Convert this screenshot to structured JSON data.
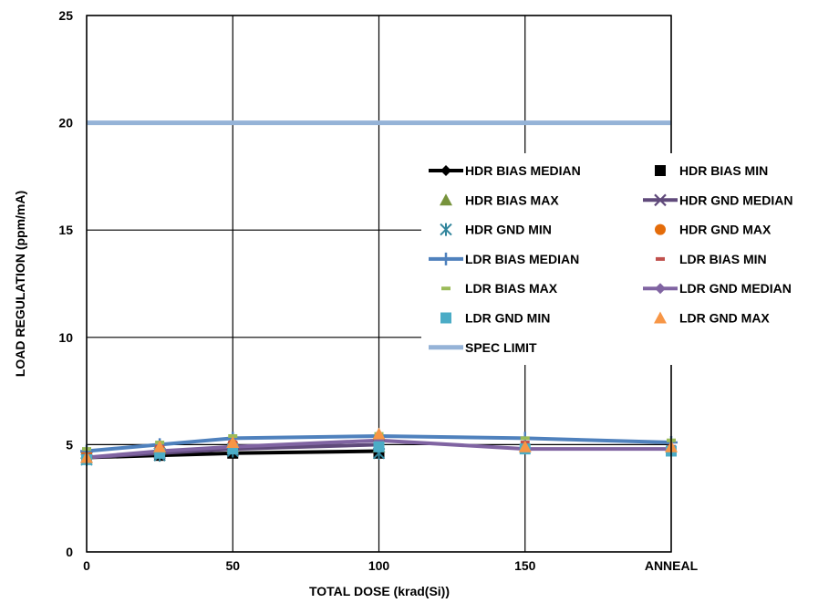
{
  "chart_data": {
    "type": "line",
    "title": "",
    "xlabel": "TOTAL DOSE (krad(Si))",
    "ylabel": "LOAD REGULATION (ppm/mA)",
    "x_ticks": [
      "0",
      "50",
      "100",
      "150",
      "ANNEAL"
    ],
    "x_values": [
      0,
      25,
      50,
      100,
      150,
      200
    ],
    "xlim": [
      0,
      200
    ],
    "ylim": [
      0,
      25
    ],
    "y_ticks": [
      0,
      5,
      10,
      15,
      20,
      25
    ],
    "grid": true,
    "legend_position": "right-center",
    "series": [
      {
        "name": "HDR BIAS MEDIAN",
        "color": "#000000",
        "marker": "diamond",
        "line": true,
        "values": [
          4.4,
          4.5,
          4.6,
          4.7,
          null,
          null
        ]
      },
      {
        "name": "HDR BIAS MIN",
        "color": "#000000",
        "marker": "square",
        "line": false,
        "values": [
          4.4,
          4.5,
          4.6,
          4.6,
          null,
          null
        ]
      },
      {
        "name": "HDR BIAS MAX",
        "color": "#77933C",
        "marker": "triangle",
        "line": false,
        "values": [
          4.6,
          4.8,
          4.9,
          4.9,
          null,
          null
        ]
      },
      {
        "name": "HDR GND MEDIAN",
        "color": "#604A7B",
        "marker": "x",
        "line": true,
        "values": [
          4.4,
          4.6,
          4.8,
          5.0,
          null,
          null
        ]
      },
      {
        "name": "HDR GND MIN",
        "color": "#31859C",
        "marker": "asterisk",
        "line": false,
        "values": [
          4.3,
          4.5,
          4.7,
          4.6,
          null,
          null
        ]
      },
      {
        "name": "HDR GND MAX",
        "color": "#E46C0A",
        "marker": "circle",
        "line": false,
        "values": [
          4.6,
          4.8,
          5.0,
          5.1,
          null,
          null
        ]
      },
      {
        "name": "LDR BIAS MEDIAN",
        "color": "#4F81BD",
        "marker": "plus",
        "line": true,
        "values": [
          4.7,
          5.0,
          5.3,
          5.4,
          5.3,
          5.1
        ]
      },
      {
        "name": "LDR BIAS MIN",
        "color": "#C0504D",
        "marker": "dash",
        "line": false,
        "values": [
          4.5,
          4.9,
          5.1,
          5.2,
          5.1,
          4.9
        ]
      },
      {
        "name": "LDR BIAS MAX",
        "color": "#9BBB59",
        "marker": "dash",
        "line": false,
        "values": [
          4.8,
          5.1,
          5.4,
          5.5,
          5.3,
          5.2
        ]
      },
      {
        "name": "LDR GND MEDIAN",
        "color": "#8064A2",
        "marker": "diamond",
        "line": true,
        "values": [
          4.4,
          4.7,
          4.9,
          5.2,
          4.8,
          4.8
        ]
      },
      {
        "name": "LDR GND MIN",
        "color": "#4BACC6",
        "marker": "square",
        "line": false,
        "values": [
          4.3,
          4.6,
          4.8,
          4.9,
          4.8,
          4.7
        ]
      },
      {
        "name": "LDR GND MAX",
        "color": "#F79646",
        "marker": "triangle",
        "line": false,
        "values": [
          4.4,
          4.9,
          5.1,
          5.5,
          4.9,
          4.9
        ]
      },
      {
        "name": "SPEC LIMIT",
        "color": "#95B3D7",
        "marker": "none",
        "line": true,
        "values": [
          20,
          20,
          20,
          20,
          20,
          20
        ]
      }
    ]
  }
}
